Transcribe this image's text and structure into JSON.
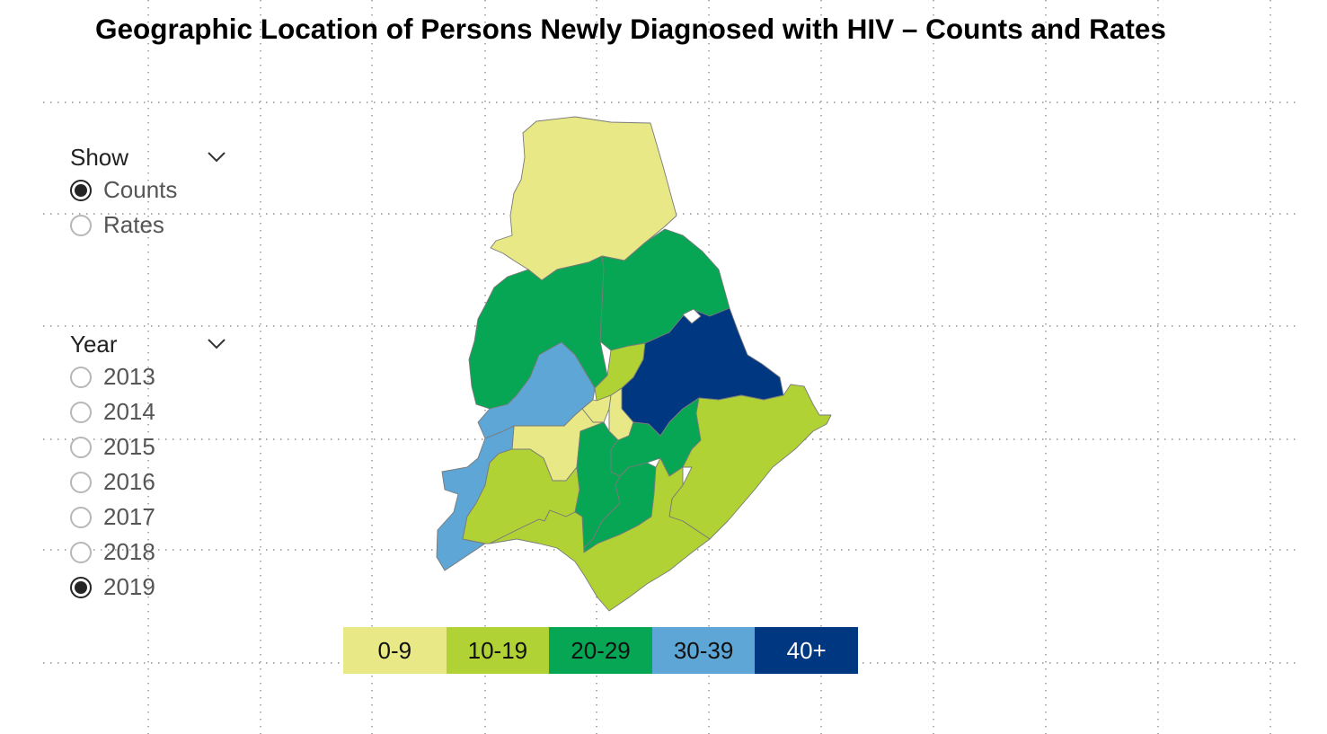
{
  "title": "Geographic Location of Persons Newly Diagnosed with HIV – Counts and Rates",
  "show_slicer": {
    "title": "Show",
    "options": [
      {
        "label": "Counts",
        "selected": true
      },
      {
        "label": "Rates",
        "selected": false
      }
    ]
  },
  "year_slicer": {
    "title": "Year",
    "options": [
      {
        "label": "2013",
        "selected": false
      },
      {
        "label": "2014",
        "selected": false
      },
      {
        "label": "2015",
        "selected": false
      },
      {
        "label": "2016",
        "selected": false
      },
      {
        "label": "2017",
        "selected": false
      },
      {
        "label": "2018",
        "selected": false
      },
      {
        "label": "2019",
        "selected": true
      }
    ]
  },
  "legend": [
    {
      "label": "0-9",
      "color": "#e8e887",
      "text_color": "#111111"
    },
    {
      "label": "10-19",
      "color": "#b0d235",
      "text_color": "#111111"
    },
    {
      "label": "20-29",
      "color": "#06a654",
      "text_color": "#111111"
    },
    {
      "label": "30-39",
      "color": "#5ea6d5",
      "text_color": "#111111"
    },
    {
      "label": "40+",
      "color": "#003781",
      "text_color": "#ffffff"
    }
  ],
  "map": {
    "type": "choropleth",
    "regions": [
      {
        "name": "north",
        "bin": "0-9"
      },
      {
        "name": "northwest",
        "bin": "20-29"
      },
      {
        "name": "north-central",
        "bin": "20-29"
      },
      {
        "name": "west",
        "bin": "30-39"
      },
      {
        "name": "central-north-strip",
        "bin": "10-19"
      },
      {
        "name": "east-central",
        "bin": "40+"
      },
      {
        "name": "central-small-a",
        "bin": "0-9"
      },
      {
        "name": "central-small-b",
        "bin": "0-9"
      },
      {
        "name": "central-west",
        "bin": "0-9"
      },
      {
        "name": "southwest",
        "bin": "30-39"
      },
      {
        "name": "south-west-central",
        "bin": "10-19"
      },
      {
        "name": "central-south-west",
        "bin": "20-29"
      },
      {
        "name": "central-south",
        "bin": "20-29"
      },
      {
        "name": "central-east",
        "bin": "20-29"
      },
      {
        "name": "east",
        "bin": "10-19"
      },
      {
        "name": "south",
        "bin": "10-19"
      }
    ]
  },
  "icons": {
    "dropdown": "chevron-down-icon",
    "radio": "radio-button-icon"
  }
}
